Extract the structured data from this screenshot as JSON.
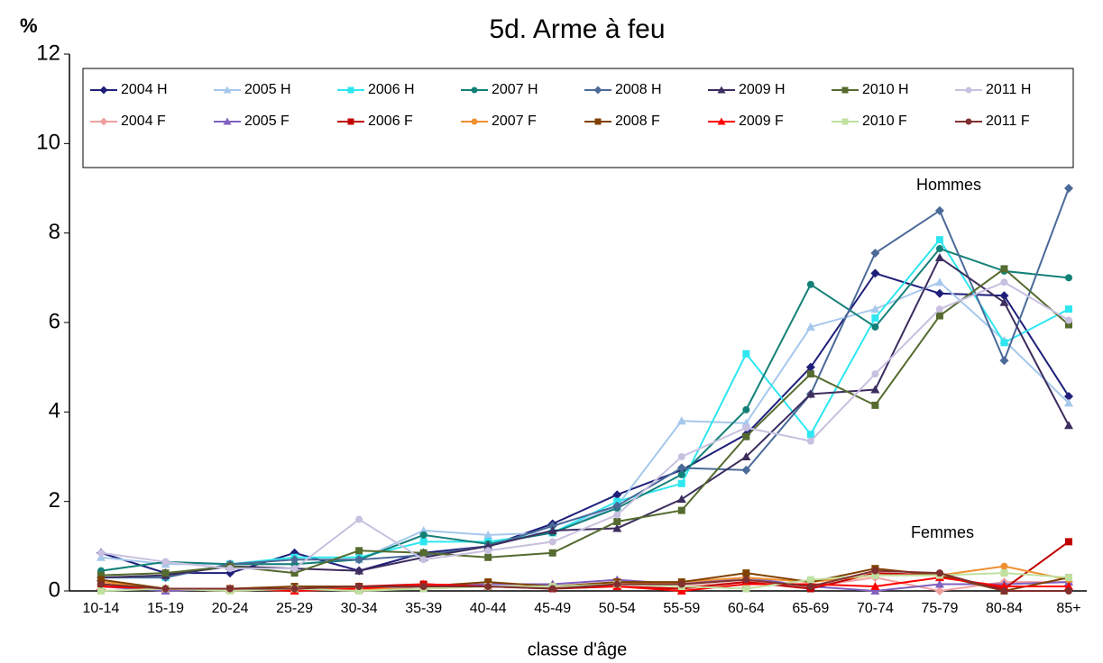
{
  "chart_data": {
    "type": "line",
    "title": "5d. Arme à feu",
    "y_axis_label": "%",
    "x_axis_label": "classe d'âge",
    "annotations": [
      "Hommes",
      "Femmes"
    ],
    "categories": [
      "10-14",
      "15-19",
      "20-24",
      "25-29",
      "30-34",
      "35-39",
      "40-44",
      "45-49",
      "50-54",
      "55-59",
      "60-64",
      "65-69",
      "70-74",
      "75-79",
      "80-84",
      "85+"
    ],
    "ylim": [
      0,
      12
    ],
    "yticks": [
      0,
      2,
      4,
      6,
      8,
      10,
      12
    ],
    "grid": false,
    "legend": "top",
    "series": [
      {
        "name": "2004 H",
        "color": "#1f1f7a",
        "marker": "diamond",
        "values": [
          0.85,
          0.4,
          0.4,
          0.85,
          0.45,
          0.85,
          1.0,
          1.5,
          2.15,
          2.7,
          3.5,
          5.0,
          7.1,
          6.65,
          6.6,
          4.35
        ]
      },
      {
        "name": "2005 H",
        "color": "#a6c8ec",
        "marker": "triangle",
        "values": [
          0.75,
          0.6,
          0.6,
          0.6,
          0.7,
          1.35,
          1.25,
          1.3,
          1.9,
          3.8,
          3.75,
          5.9,
          6.3,
          6.9,
          5.6,
          4.2
        ]
      },
      {
        "name": "2006 H",
        "color": "#2ee6f0",
        "marker": "square",
        "values": [
          0.3,
          0.3,
          0.6,
          0.75,
          0.75,
          1.1,
          1.1,
          1.3,
          2.0,
          2.4,
          5.3,
          3.5,
          6.1,
          7.85,
          5.55,
          6.3
        ]
      },
      {
        "name": "2007 H",
        "color": "#138078",
        "marker": "circle",
        "values": [
          0.45,
          0.65,
          0.6,
          0.6,
          0.7,
          1.25,
          1.05,
          1.3,
          1.85,
          2.6,
          4.05,
          6.85,
          5.9,
          7.65,
          7.15,
          7.0
        ]
      },
      {
        "name": "2008 H",
        "color": "#4a6a98",
        "marker": "diamond",
        "values": [
          0.3,
          0.3,
          0.6,
          0.7,
          0.7,
          0.8,
          1.0,
          1.45,
          1.9,
          2.75,
          2.7,
          4.4,
          7.55,
          8.5,
          5.15,
          9.0
        ]
      },
      {
        "name": "2009 H",
        "color": "#3c2d5e",
        "marker": "triangle",
        "values": [
          0.3,
          0.35,
          0.55,
          0.5,
          0.45,
          0.75,
          1.0,
          1.35,
          1.4,
          2.05,
          3.0,
          4.4,
          4.5,
          7.45,
          6.45,
          3.7
        ]
      },
      {
        "name": "2010 H",
        "color": "#556b2f",
        "marker": "square",
        "values": [
          0.35,
          0.4,
          0.55,
          0.4,
          0.9,
          0.85,
          0.75,
          0.85,
          1.55,
          1.8,
          3.45,
          4.85,
          4.15,
          6.15,
          7.2,
          5.95
        ]
      },
      {
        "name": "2011 H",
        "color": "#c8c0e0",
        "marker": "circle",
        "values": [
          0.85,
          0.65,
          0.5,
          0.5,
          1.6,
          0.7,
          0.9,
          1.1,
          1.7,
          3.0,
          3.65,
          3.35,
          4.85,
          6.3,
          6.9,
          6.05
        ]
      },
      {
        "name": "2004 F",
        "color": "#f0a0a0",
        "marker": "diamond",
        "values": [
          0.15,
          0.05,
          0.05,
          0.05,
          0.1,
          0.1,
          0.1,
          0.1,
          0.15,
          0.1,
          0.2,
          0.1,
          0.3,
          0.0,
          0.2,
          0.2
        ]
      },
      {
        "name": "2005 F",
        "color": "#8060c0",
        "marker": "triangle",
        "values": [
          0.1,
          0.0,
          0.05,
          0.05,
          0.05,
          0.1,
          0.15,
          0.15,
          0.25,
          0.15,
          0.3,
          0.1,
          0.0,
          0.15,
          0.15,
          0.2
        ]
      },
      {
        "name": "2006 F",
        "color": "#c00000",
        "marker": "square",
        "values": [
          0.1,
          0.05,
          0.05,
          0.0,
          0.1,
          0.15,
          0.1,
          0.05,
          0.1,
          0.05,
          0.2,
          0.05,
          0.4,
          0.35,
          0.05,
          1.1
        ]
      },
      {
        "name": "2007 F",
        "color": "#f09030",
        "marker": "circle",
        "values": [
          0.2,
          0.05,
          0.0,
          0.05,
          0.05,
          0.05,
          0.1,
          0.1,
          0.15,
          0.2,
          0.3,
          0.2,
          0.35,
          0.35,
          0.55,
          0.25
        ]
      },
      {
        "name": "2008 F",
        "color": "#804000",
        "marker": "square",
        "values": [
          0.25,
          0.05,
          0.05,
          0.1,
          0.1,
          0.1,
          0.2,
          0.1,
          0.2,
          0.2,
          0.4,
          0.2,
          0.5,
          0.35,
          0.0,
          0.3
        ]
      },
      {
        "name": "2009 F",
        "color": "#ff0000",
        "marker": "triangle",
        "values": [
          0.1,
          0.05,
          0.05,
          0.0,
          0.05,
          0.15,
          0.1,
          0.1,
          0.1,
          0.0,
          0.15,
          0.15,
          0.1,
          0.3,
          0.1,
          0.1
        ]
      },
      {
        "name": "2010 F",
        "color": "#c0e0a0",
        "marker": "square",
        "values": [
          0.0,
          0.05,
          0.0,
          0.05,
          0.0,
          0.05,
          0.1,
          0.1,
          0.15,
          0.1,
          0.05,
          0.25,
          0.35,
          0.35,
          0.4,
          0.3
        ]
      },
      {
        "name": "2011 F",
        "color": "#803030",
        "marker": "circle",
        "values": [
          0.15,
          0.05,
          0.05,
          0.05,
          0.1,
          0.1,
          0.1,
          0.05,
          0.15,
          0.15,
          0.25,
          0.1,
          0.45,
          0.4,
          0.0,
          0.0
        ]
      }
    ]
  }
}
